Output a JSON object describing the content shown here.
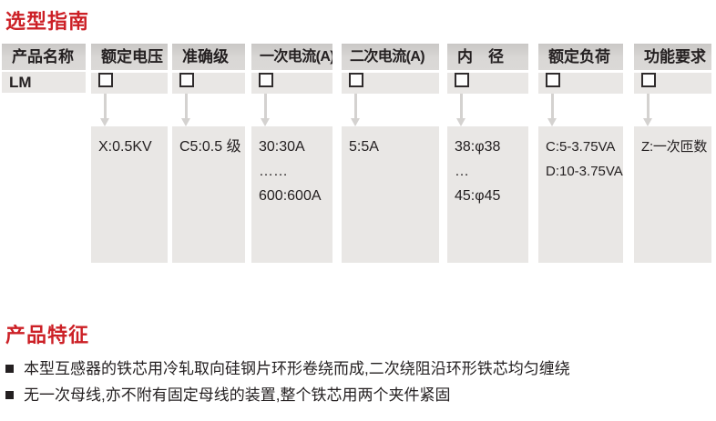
{
  "colors": {
    "accent_red": "#cc2026",
    "header_bg": "#d7d5d3",
    "cell_bg": "#e9e7e5",
    "arrow_gray": "#d4d2d0",
    "text": "#242021"
  },
  "icons": {
    "checkbox": "□",
    "down_arrow": "▼",
    "bullet": "■"
  },
  "selection_guide": {
    "title": "选型指南",
    "columns": [
      {
        "header": "产品名称",
        "value": "LM"
      },
      {
        "header": "额定电压",
        "detail_lines": [
          "X:0.5KV"
        ]
      },
      {
        "header": "准确级",
        "detail_lines": [
          "C5:0.5 级"
        ]
      },
      {
        "header": "一次电流(A)",
        "detail_lines": [
          "30:30A",
          "……",
          "600:600A"
        ]
      },
      {
        "header": "二次电流(A)",
        "detail_lines": [
          "5:5A"
        ]
      },
      {
        "header": "内　径",
        "detail_lines": [
          "38:φ38",
          "…",
          "45:φ45"
        ]
      },
      {
        "header": "额定负荷",
        "detail_lines": [
          "C:5-3.75VA",
          "D:10-3.75VA"
        ]
      },
      {
        "header": "功能要求",
        "detail_lines": [
          "Z:一次匝数"
        ]
      }
    ]
  },
  "features": {
    "title": "产品特征",
    "items": [
      "本型互感器的铁芯用冷轧取向硅钢片环形卷绕而成,二次绕阻沿环形铁芯均匀缠绕",
      "无一次母线,亦不附有固定母线的装置,整个铁芯用两个夹件紧固"
    ]
  }
}
